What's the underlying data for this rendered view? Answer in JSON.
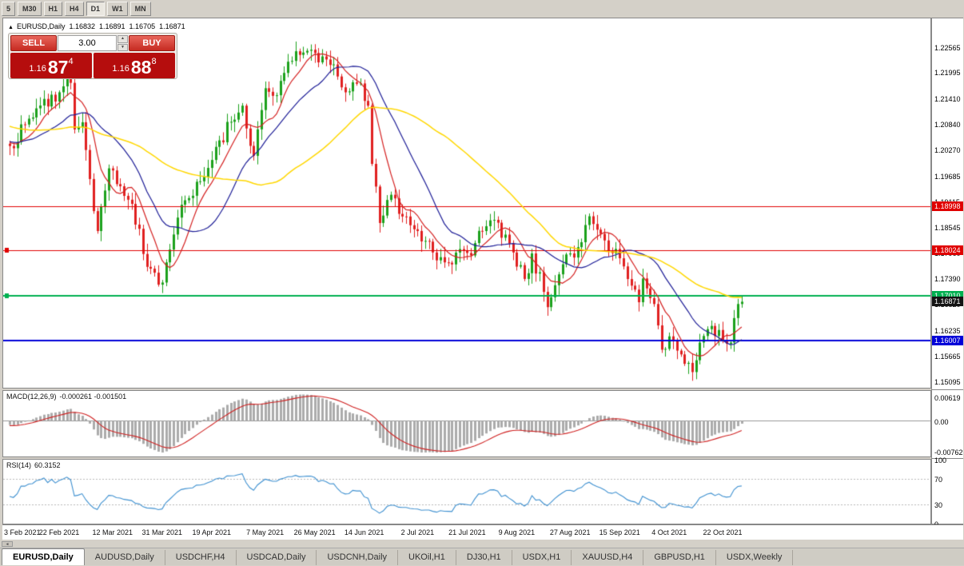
{
  "window": {
    "bg": "#d4d0c8"
  },
  "toolbar": {
    "timeframes": [
      {
        "label": "5",
        "active": false
      },
      {
        "label": "M30",
        "active": false
      },
      {
        "label": "H1",
        "active": false
      },
      {
        "label": "H4",
        "active": false
      },
      {
        "label": "D1",
        "active": true
      },
      {
        "label": "W1",
        "active": false
      },
      {
        "label": "MN",
        "active": false
      }
    ]
  },
  "chart_header": {
    "collapse_icon": "▲",
    "title": "EURUSD,Daily",
    "open": "1.16832",
    "high": "1.16891",
    "low": "1.16705",
    "close": "1.16871"
  },
  "trade_panel": {
    "sell_label": "SELL",
    "buy_label": "BUY",
    "volume": "3.00",
    "spinner_up": "▲",
    "spinner_down": "▼",
    "sell_price": {
      "small": "1.16",
      "big": "87",
      "sup": "4"
    },
    "buy_price": {
      "small": "1.16",
      "big": "88",
      "sup": "8"
    }
  },
  "price_axis": {
    "labels": [
      "1.22565",
      "1.21995",
      "1.21410",
      "1.20840",
      "1.20270",
      "1.19685",
      "1.19115",
      "1.18545",
      "1.17960",
      "1.17390",
      "1.16820",
      "1.16235",
      "1.15665",
      "1.15095"
    ]
  },
  "chart_data": {
    "type": "candlestick",
    "symbol": "EURUSD",
    "timeframe": "Daily",
    "n_candles": 193,
    "candle_colors": {
      "up": "#1ba11b",
      "down": "#e02020"
    },
    "price_anchors": [
      [
        0,
        1.2035
      ],
      [
        7,
        1.2119
      ],
      [
        16,
        1.2176
      ],
      [
        17,
        1.2072
      ],
      [
        19,
        1.2088
      ],
      [
        23,
        1.1845
      ],
      [
        26,
        1.1985
      ],
      [
        31,
        1.1915
      ],
      [
        34,
        1.185
      ],
      [
        36,
        1.1765
      ],
      [
        40,
        1.173
      ],
      [
        41,
        1.1775
      ],
      [
        44,
        1.1875
      ],
      [
        51,
        1.1966
      ],
      [
        54,
        1.2033
      ],
      [
        58,
        1.2089
      ],
      [
        61,
        1.2125
      ],
      [
        64,
        1.2013
      ],
      [
        67,
        1.2164
      ],
      [
        69,
        1.2147
      ],
      [
        74,
        1.2225
      ],
      [
        79,
        1.225
      ],
      [
        84,
        1.2216
      ],
      [
        87,
        1.2166
      ],
      [
        91,
        1.2174
      ],
      [
        94,
        1.2125
      ],
      [
        95,
        1.1995
      ],
      [
        97,
        1.1863
      ],
      [
        100,
        1.1926
      ],
      [
        105,
        1.1858
      ],
      [
        109,
        1.1823
      ],
      [
        114,
        1.1775
      ],
      [
        120,
        1.1796
      ],
      [
        124,
        1.1845
      ],
      [
        127,
        1.187
      ],
      [
        130,
        1.1837
      ],
      [
        135,
        1.1738
      ],
      [
        137,
        1.1795
      ],
      [
        141,
        1.1675
      ],
      [
        142,
        1.1697
      ],
      [
        147,
        1.1795
      ],
      [
        149,
        1.1809
      ],
      [
        152,
        1.1878
      ],
      [
        156,
        1.1824
      ],
      [
        159,
        1.1805
      ],
      [
        161,
        1.1766
      ],
      [
        165,
        1.1686
      ],
      [
        166,
        1.1739
      ],
      [
        169,
        1.1682
      ],
      [
        171,
        1.158
      ],
      [
        174,
        1.1599
      ],
      [
        179,
        1.153
      ],
      [
        181,
        1.1596
      ],
      [
        184,
        1.1633
      ],
      [
        186,
        1.1624
      ],
      [
        189,
        1.1596
      ],
      [
        191,
        1.1682
      ],
      [
        192,
        1.16871
      ]
    ],
    "preroll_anchors": [
      [
        -50,
        1.215
      ],
      [
        -35,
        1.21
      ],
      [
        -20,
        1.206
      ],
      [
        -10,
        1.204
      ],
      [
        -1,
        1.204
      ]
    ],
    "x_axis": {
      "labels": [
        {
          "text": "3 Feb 2021",
          "i": 0
        },
        {
          "text": "22 Feb 2021",
          "i": 13
        },
        {
          "text": "12 Mar 2021",
          "i": 27
        },
        {
          "text": "31 Mar 2021",
          "i": 40
        },
        {
          "text": "19 Apr 2021",
          "i": 53
        },
        {
          "text": "7 May 2021",
          "i": 67
        },
        {
          "text": "26 May 2021",
          "i": 80
        },
        {
          "text": "14 Jun 2021",
          "i": 93
        },
        {
          "text": "2 Jul 2021",
          "i": 107
        },
        {
          "text": "21 Jul 2021",
          "i": 120
        },
        {
          "text": "9 Aug 2021",
          "i": 133
        },
        {
          "text": "27 Aug 2021",
          "i": 147
        },
        {
          "text": "15 Sep 2021",
          "i": 160
        },
        {
          "text": "4 Oct 2021",
          "i": 173
        },
        {
          "text": "22 Oct 2021",
          "i": 187
        }
      ]
    },
    "levels": [
      {
        "value": 1.18998,
        "label": "1.18998",
        "color": "#e00000",
        "lw": 1,
        "handle": false
      },
      {
        "value": 1.18024,
        "label": "1.18024",
        "color": "#e00000",
        "lw": 1,
        "handle": true
      },
      {
        "value": 1.1701,
        "label": "1.17010",
        "color": "#00b050",
        "lw": 2,
        "handle": true
      },
      {
        "value": 1.16007,
        "label": "1.16007",
        "color": "#0000d8",
        "lw": 2,
        "handle": false
      }
    ],
    "current_price": {
      "value": 1.16871,
      "label": "1.16871",
      "bg": "#141414"
    },
    "moving_averages": [
      {
        "period": 8,
        "color": "#d42020"
      },
      {
        "period": 20,
        "color": "#1c1c96"
      },
      {
        "period": 50,
        "color": "#ffd700"
      }
    ],
    "indicators": {
      "macd": {
        "name": "MACD(12,26,9)",
        "values_text": "-0.000261 -0.001501",
        "fast": 12,
        "slow": 26,
        "signal": 9,
        "hist_color": "#ababab",
        "signal_color": "#cf2020",
        "axis": [
          {
            "v": 0.00619,
            "label": "0.00619"
          },
          {
            "v": 0,
            "label": "0.00"
          },
          {
            "v": -0.00762,
            "label": "-0.00762"
          }
        ]
      },
      "rsi": {
        "name": "RSI(14)",
        "value_text": "60.3152",
        "period": 14,
        "color": "#3e90d0",
        "levels": [
          70,
          30
        ],
        "axis": [
          {
            "v": 100,
            "label": "100"
          },
          {
            "v": 70,
            "label": "70"
          },
          {
            "v": 30,
            "label": "30"
          },
          {
            "v": 0,
            "label": "0"
          }
        ]
      }
    }
  },
  "bottom_bar": {
    "scroll_left_icon": "◄"
  },
  "bottom_tabs": {
    "tabs": [
      {
        "label": "EURUSD,Daily",
        "active": true
      },
      {
        "label": "AUDUSD,Daily",
        "active": false
      },
      {
        "label": "USDCHF,H4",
        "active": false
      },
      {
        "label": "USDCAD,Daily",
        "active": false
      },
      {
        "label": "USDCNH,Daily",
        "active": false
      },
      {
        "label": "UKOil,H1",
        "active": false
      },
      {
        "label": "DJ30,H1",
        "active": false
      },
      {
        "label": "USDX,H1",
        "active": false
      },
      {
        "label": "XAUUSD,H4",
        "active": false
      },
      {
        "label": "GBPUSD,H1",
        "active": false
      },
      {
        "label": "USDX,Weekly",
        "active": false
      }
    ]
  }
}
